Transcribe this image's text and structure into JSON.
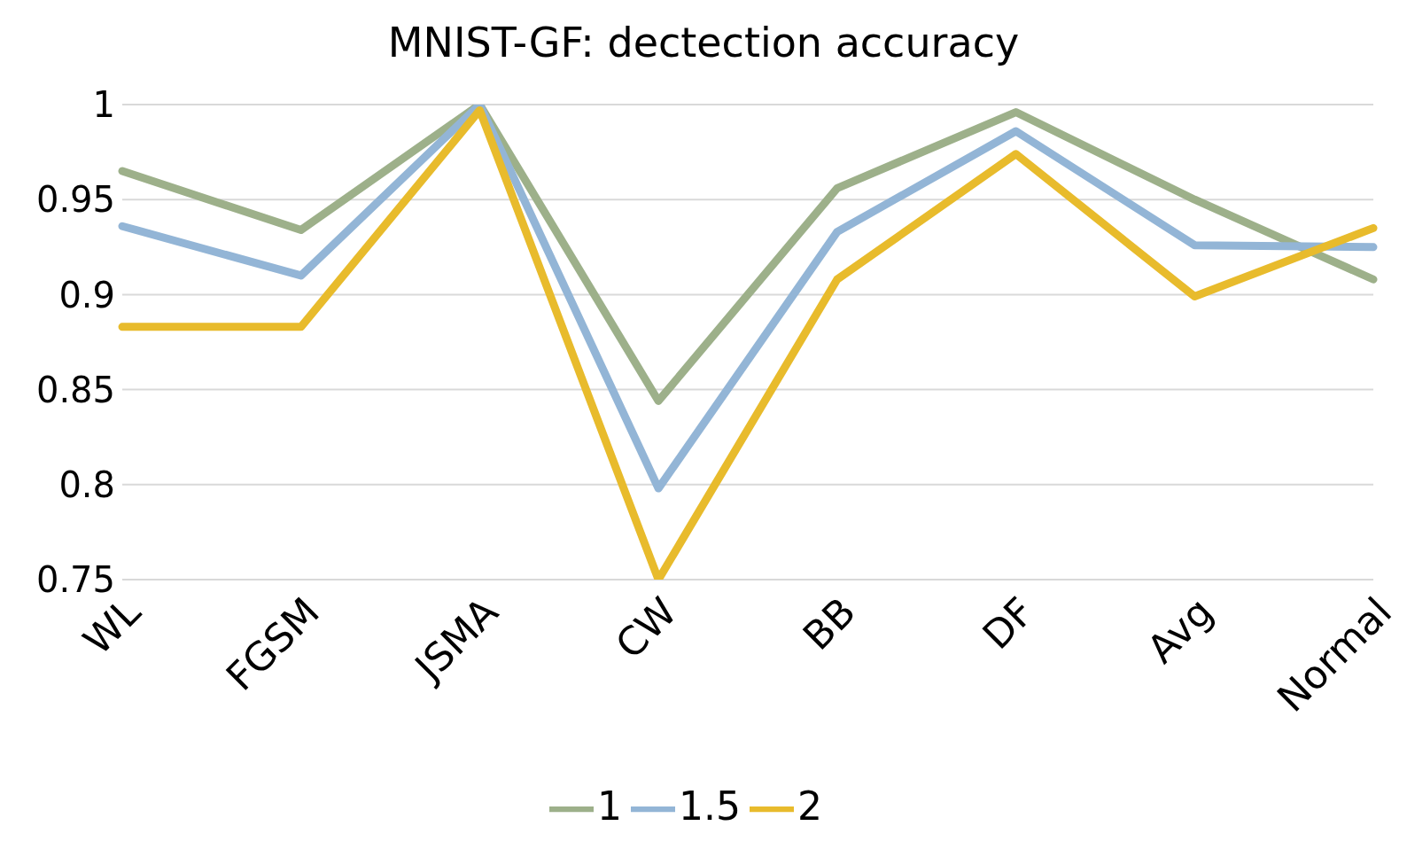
{
  "chart_data": {
    "type": "line",
    "title": "MNIST-GF: dectection accuracy",
    "categories": [
      "WL",
      "FGSM",
      "JSMA",
      "CW",
      "BB",
      "DF",
      "Avg",
      "Normal"
    ],
    "series": [
      {
        "name": "1",
        "color": "#9db08a",
        "values": [
          0.965,
          0.934,
          1.0,
          0.844,
          0.956,
          0.996,
          0.95,
          0.908
        ]
      },
      {
        "name": "1.5",
        "color": "#93b5d6",
        "values": [
          0.936,
          0.91,
          1.0,
          0.798,
          0.933,
          0.986,
          0.926,
          0.925
        ]
      },
      {
        "name": "2",
        "color": "#e8bb2c",
        "values": [
          0.883,
          0.883,
          0.997,
          0.75,
          0.908,
          0.974,
          0.899,
          0.935
        ]
      }
    ],
    "ylim": [
      0.75,
      1
    ],
    "yticks": [
      0.75,
      0.8,
      0.85,
      0.9,
      0.95,
      1
    ],
    "grid": "y",
    "legend": "bottom",
    "marker": "none",
    "line_style": "solid"
  }
}
